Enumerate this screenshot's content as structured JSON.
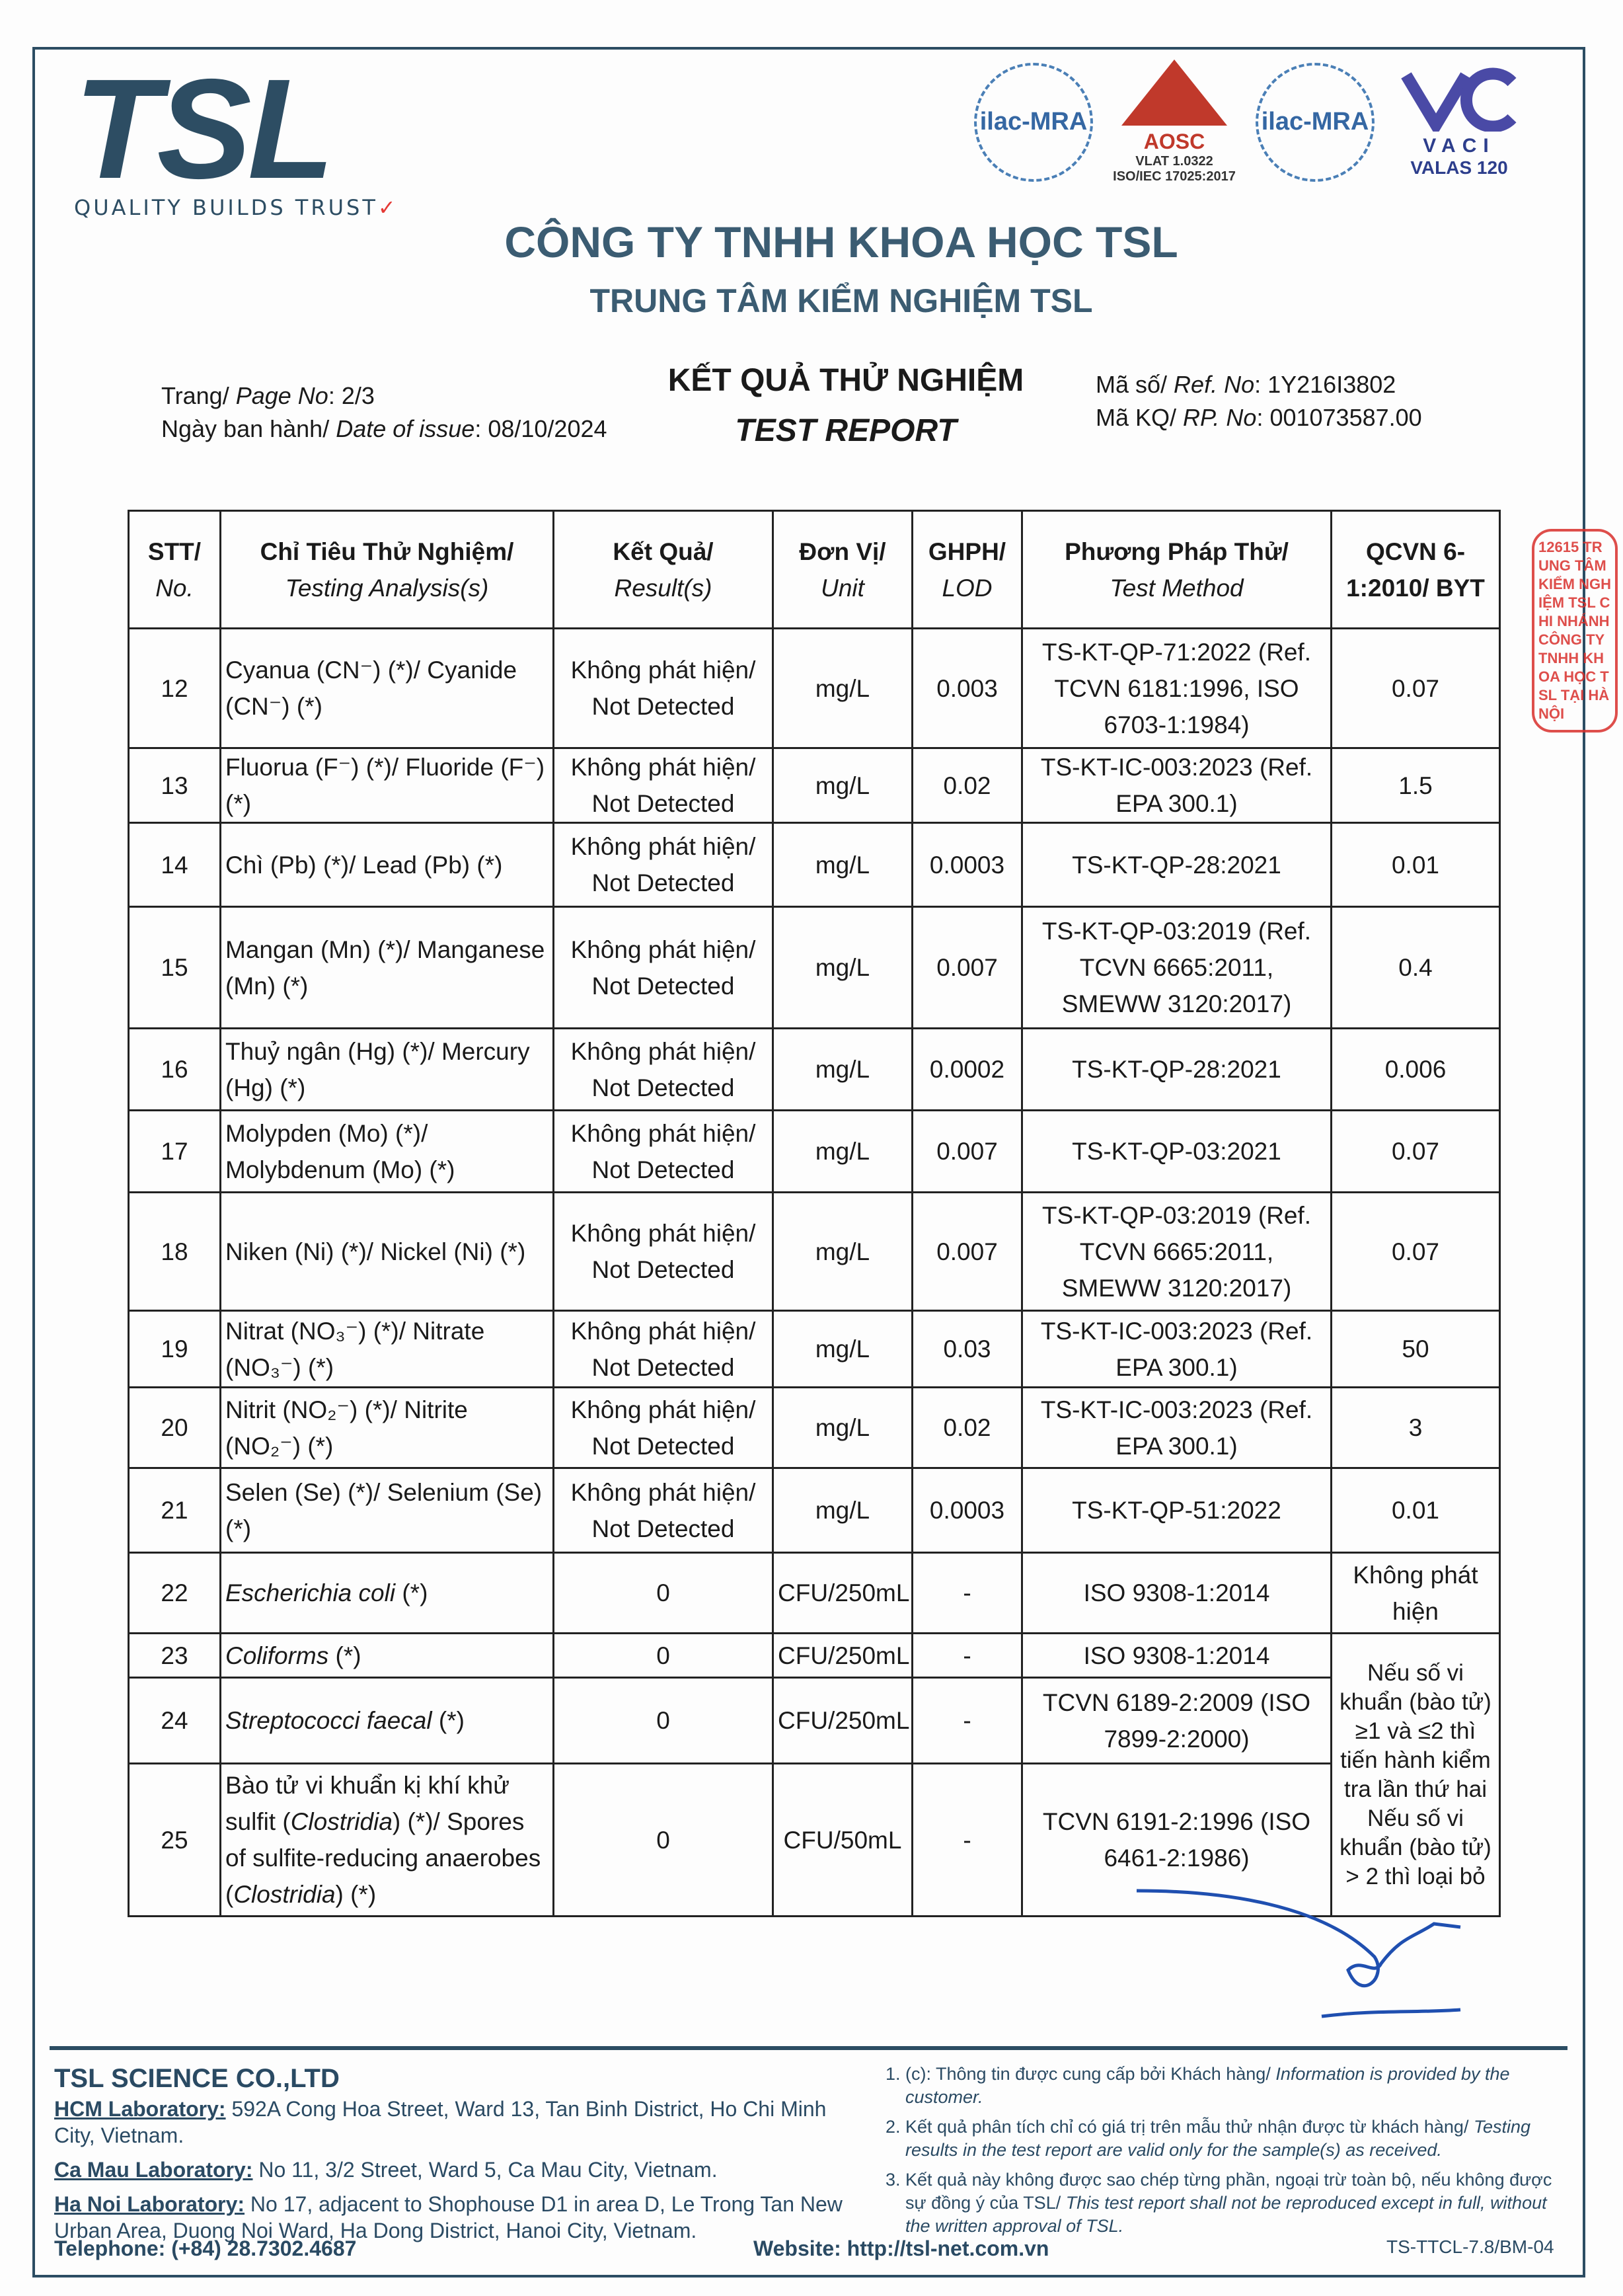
{
  "logo": {
    "text": "TSL",
    "tagline": "QUALITY BUILDS TRUST",
    "tick": "✓"
  },
  "accreditations": [
    {
      "name": "ilac-MRA"
    },
    {
      "name": "AOSC",
      "line1": "VLAT 1.0322",
      "line2": "ISO/IEC 17025:2017"
    },
    {
      "name": "ilac-MRA"
    },
    {
      "name": "VACI",
      "sub": "VALAS 120"
    }
  ],
  "header": {
    "company": "CÔNG TY TNHH KHOA HỌC TSL",
    "center": "TRUNG TÂM KIỂM NGHIỆM TSL"
  },
  "meta": {
    "page_label_vi": "Trang/ ",
    "page_label_en": "Page No",
    "page_value": ": 2/3",
    "date_label_vi": "Ngày ban hành/ ",
    "date_label_en": "Date of issue",
    "date_value": ": 08/10/2024",
    "title_vi": "KẾT QUẢ THỬ NGHIỆM",
    "title_en": "TEST REPORT",
    "ref_label_vi": "Mã số/ ",
    "ref_label_en": "Ref. No",
    "ref_value": ": 1Y216I3802",
    "rp_label_vi": "Mã KQ/ ",
    "rp_label_en": "RP. No",
    "rp_value": ": 001073587.00"
  },
  "table": {
    "headers": [
      {
        "vi": "STT/",
        "en": "No."
      },
      {
        "vi": "Chỉ Tiêu Thử Nghiệm/",
        "en": "Testing Analysis(s)"
      },
      {
        "vi": "Kết Quả/",
        "en": "Result(s)"
      },
      {
        "vi": "Đơn Vị/",
        "en": "Unit"
      },
      {
        "vi": "GHPH/",
        "en": "LOD"
      },
      {
        "vi": "Phương Pháp Thử/",
        "en": "Test Method"
      },
      {
        "vi": "QCVN 6-1:2010/ BYT",
        "en": ""
      }
    ],
    "rows": [
      {
        "no": "12",
        "analysis": [
          {
            "t": "Cyanua (CN⁻) (*)/ Cyanide (CN⁻) (*)"
          }
        ],
        "result": "Không phát hiện/ Not Detected",
        "unit": "mg/L",
        "lod": "0.003",
        "method": "TS-KT-QP-71:2022 (Ref. TCVN 6181:1996, ISO 6703-1:1984)",
        "qcvn": "0.07"
      },
      {
        "no": "13",
        "analysis": [
          {
            "t": "Fluorua (F⁻) (*)/ Fluoride (F⁻) (*)"
          }
        ],
        "result": "Không phát hiện/ Not Detected",
        "unit": "mg/L",
        "lod": "0.02",
        "method": "TS-KT-IC-003:2023 (Ref. EPA 300.1)",
        "qcvn": "1.5"
      },
      {
        "no": "14",
        "analysis": [
          {
            "t": "Chì (Pb) (*)/ Lead (Pb) (*)"
          }
        ],
        "result": "Không phát hiện/ Not Detected",
        "unit": "mg/L",
        "lod": "0.0003",
        "method": "TS-KT-QP-28:2021",
        "qcvn": "0.01"
      },
      {
        "no": "15",
        "analysis": [
          {
            "t": "Mangan (Mn) (*)/ Manganese (Mn) (*)"
          }
        ],
        "result": "Không phát hiện/ Not Detected",
        "unit": "mg/L",
        "lod": "0.007",
        "method": "TS-KT-QP-03:2019 (Ref. TCVN 6665:2011, SMEWW 3120:2017)",
        "qcvn": "0.4"
      },
      {
        "no": "16",
        "analysis": [
          {
            "t": "Thuỷ ngân (Hg) (*)/ Mercury (Hg) (*)"
          }
        ],
        "result": "Không phát hiện/ Not Detected",
        "unit": "mg/L",
        "lod": "0.0002",
        "method": "TS-KT-QP-28:2021",
        "qcvn": "0.006"
      },
      {
        "no": "17",
        "analysis": [
          {
            "t": "Molypden (Mo) (*)/ Molybdenum (Mo) (*)"
          }
        ],
        "result": "Không phát hiện/ Not Detected",
        "unit": "mg/L",
        "lod": "0.007",
        "method": "TS-KT-QP-03:2021",
        "qcvn": "0.07"
      },
      {
        "no": "18",
        "analysis": [
          {
            "t": "Niken (Ni) (*)/ Nickel (Ni) (*)"
          }
        ],
        "result": "Không phát hiện/ Not Detected",
        "unit": "mg/L",
        "lod": "0.007",
        "method": "TS-KT-QP-03:2019 (Ref. TCVN 6665:2011, SMEWW 3120:2017)",
        "qcvn": "0.07"
      },
      {
        "no": "19",
        "analysis": [
          {
            "t": "Nitrat (NO₃⁻) (*)/ Nitrate (NO₃⁻) (*)"
          }
        ],
        "result": "Không phát hiện/ Not Detected",
        "unit": "mg/L",
        "lod": "0.03",
        "method": "TS-KT-IC-003:2023 (Ref. EPA 300.1)",
        "qcvn": "50"
      },
      {
        "no": "20",
        "analysis": [
          {
            "t": "Nitrit (NO₂⁻) (*)/ Nitrite (NO₂⁻) (*)"
          }
        ],
        "result": "Không phát hiện/ Not Detected",
        "unit": "mg/L",
        "lod": "0.02",
        "method": "TS-KT-IC-003:2023 (Ref. EPA 300.1)",
        "qcvn": "3"
      },
      {
        "no": "21",
        "analysis": [
          {
            "t": "Selen (Se) (*)/ Selenium (Se) (*)"
          }
        ],
        "result": "Không phát hiện/ Not Detected",
        "unit": "mg/L",
        "lod": "0.0003",
        "method": "TS-KT-QP-51:2022",
        "qcvn": "0.01"
      },
      {
        "no": "22",
        "analysis": [
          {
            "t": "Escherichia coli",
            "i": true
          },
          {
            "t": " (*)"
          }
        ],
        "result": "0",
        "unit": "CFU/250mL",
        "lod": "-",
        "method": "ISO 9308-1:2014",
        "qcvn": "Không phát hiện"
      },
      {
        "no": "23",
        "analysis": [
          {
            "t": "Coliforms",
            "i": true
          },
          {
            "t": " (*)"
          }
        ],
        "result": "0",
        "unit": "CFU/250mL",
        "lod": "-",
        "method": "ISO 9308-1:2014",
        "qcvn": "Nếu số vi khuẩn (bào tử) ≥1 và ≤2 thì tiến hành kiểm tra lần thứ hai Nếu số vi khuẩn (bào tử) > 2 thì loại bỏ",
        "qcvn_rowspan": 3
      },
      {
        "no": "24",
        "analysis": [
          {
            "t": "Streptococci faecal",
            "i": true
          },
          {
            "t": " (*)"
          }
        ],
        "result": "0",
        "unit": "CFU/250mL",
        "lod": "-",
        "method": "TCVN 6189-2:2009 (ISO 7899-2:2000)"
      },
      {
        "no": "25",
        "analysis": [
          {
            "t": "Bào tử vi khuẩn kị khí khử sulfit ("
          },
          {
            "t": "Clostridia",
            "i": true
          },
          {
            "t": ") (*)/ Spores of sulfite-reducing anaerobes ("
          },
          {
            "t": "Clostridia",
            "i": true
          },
          {
            "t": ") (*)"
          }
        ],
        "result": "0",
        "unit": "CFU/50mL",
        "lod": "-",
        "method": "TCVN 6191-2:1996 (ISO 6461-2:1986)"
      }
    ]
  },
  "stamp": {
    "text": "12615 TRUNG TÂM KIỂM NGHIỆM TSL CHI NHÁNH CÔNG TY TNHH KHOA HỌC TSL TẠI HÀ NỘI"
  },
  "footer": {
    "company": "TSL SCIENCE CO.,LTD",
    "labs": [
      {
        "label": "HCM Laboratory:",
        "address": " 592A Cong Hoa Street, Ward 13, Tan Binh District, Ho Chi Minh City, Vietnam."
      },
      {
        "label": "Ca Mau Laboratory:",
        "address": " No 11, 3/2 Street, Ward 5, Ca Mau City, Vietnam."
      },
      {
        "label": "Ha Noi Laboratory:",
        "address": " No 17, adjacent to Shophouse D1 in area D, Le Trong Tan New Urban Area, Duong Noi Ward, Ha Dong District, Hanoi City, Vietnam."
      }
    ],
    "notes": [
      {
        "vi": "1. (c): Thông tin được cung cấp bởi Khách hàng/ ",
        "en": "Information is provided by the customer."
      },
      {
        "vi": "2. Kết quả phân tích chỉ có giá trị trên mẫu thử nhận được từ khách hàng/ ",
        "en": "Testing results in the test report are valid only for the sample(s) as received."
      },
      {
        "vi": "3. Kết quả này không được sao chép từng phần, ngoại trừ toàn bộ, nếu không được sự đồng ý của TSL/ ",
        "en": "This test report shall not be reproduced except in full, without the written approval of TSL."
      }
    ],
    "telephone": "Telephone: (+84) 28.7302.4687",
    "website": "Website: http://tsl-net.com.vn",
    "form_code": "TS-TTCL-7.8/BM-04"
  }
}
